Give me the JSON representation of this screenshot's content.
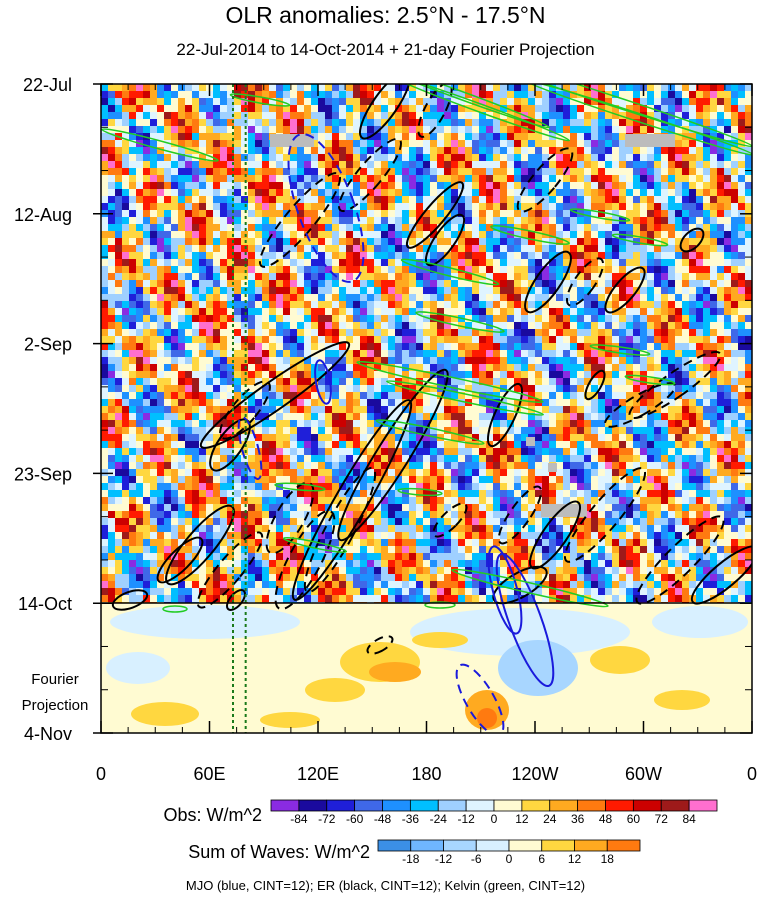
{
  "chart_data": {
    "type": "heatmap",
    "title": "OLR anomalies: 2.5°N - 17.5°N",
    "subtitle": "22-Jul-2014 to 14-Oct-2014 + 21-day Fourier Projection",
    "x_tick_labels": [
      "0",
      "60E",
      "120E",
      "180",
      "120W",
      "60W",
      "0"
    ],
    "x_values": [
      0,
      60,
      120,
      180,
      240,
      300,
      360
    ],
    "y_tick_labels": [
      "22-Jul",
      "12-Aug",
      "2-Sep",
      "23-Sep",
      "14-Oct",
      "4-Nov"
    ],
    "y_values": [
      "2014-07-22",
      "2014-08-12",
      "2014-09-02",
      "2014-09-23",
      "2014-10-14",
      "2014-11-04"
    ],
    "projection_label_lines": [
      "Fourier",
      "Projection"
    ],
    "observation_end": "2014-10-14",
    "reference_lines_lon": [
      73,
      80
    ],
    "obs_colorbar": {
      "label": "Obs: W/m^2",
      "levels": [
        "-84",
        "-72",
        "-60",
        "-48",
        "-36",
        "-24",
        "-12",
        "0",
        "12",
        "24",
        "36",
        "48",
        "60",
        "72",
        "84"
      ],
      "colors": [
        "#8a2be2",
        "#1a0a9e",
        "#1f1fd9",
        "#3f68e8",
        "#1e90ff",
        "#00bfff",
        "#9fd0ff",
        "#dff4ff",
        "#fffbd2",
        "#ffd740",
        "#ffaa20",
        "#ff7a10",
        "#ff1a00",
        "#cc0000",
        "#9e1a1a",
        "#ff6fcf"
      ]
    },
    "wave_colorbar": {
      "label": "Sum of Waves: W/m^2",
      "levels": [
        "-18",
        "-12",
        "-6",
        "0",
        "6",
        "12",
        "18"
      ],
      "colors": [
        "#3b8fe6",
        "#6fb6ff",
        "#a8d6ff",
        "#d8f0ff",
        "#fffbd2",
        "#ffd740",
        "#ffaa20",
        "#ff7a10"
      ]
    },
    "contours": [
      {
        "name": "MJO",
        "color": "#1a1adc",
        "cint": 12
      },
      {
        "name": "ER",
        "color": "#000000",
        "cint": 12
      },
      {
        "name": "Kelvin",
        "color": "#22cc22",
        "cint": 12
      }
    ],
    "caption": "MJO (blue, CINT=12); ER (black, CINT=12); Kelvin (green, CINT=12)"
  }
}
